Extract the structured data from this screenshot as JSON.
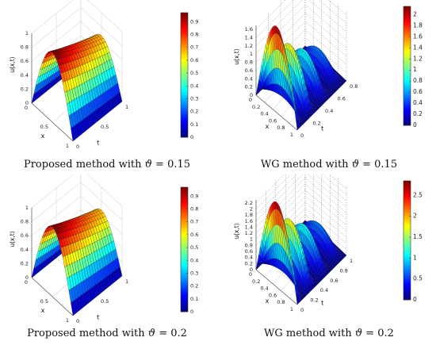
{
  "chart_data": [
    {
      "type": "surface3d",
      "caption": {
        "prefix": "Proposed method with ",
        "symbol": "ϑ",
        "rest": " = 0.15"
      },
      "zlabel": "u(x,t)",
      "xlabel": "x",
      "tlabel": "t",
      "zticks": [
        "0",
        "0.2",
        "0.4",
        "0.6",
        "0.8",
        "1"
      ],
      "xticks": [
        "0",
        "0.5",
        "1"
      ],
      "tticks": [
        "0",
        "0.5",
        "1"
      ],
      "zlim": [
        0,
        1
      ],
      "function": "sin(pi*x)*exp(-0.4*t)",
      "colorbar": {
        "ticks": [
          "0",
          "0.1",
          "0.2",
          "0.3",
          "0.4",
          "0.5",
          "0.6",
          "0.7",
          "0.8",
          "0.9"
        ],
        "range": [
          0,
          0.97
        ]
      }
    },
    {
      "type": "surface3d",
      "caption": {
        "prefix": "WG method with ",
        "symbol": "ϑ",
        "rest": " = 0.15"
      },
      "zlabel": "u(x,t)",
      "xlabel": "x",
      "tlabel": "t",
      "zticks": [
        "0",
        "0.2",
        "0.4",
        "0.6",
        "0.8",
        "1",
        "1.2",
        "1.4",
        "1.6"
      ],
      "xticks": [
        "0",
        "0.2",
        "0.4",
        "0.6",
        "0.8",
        "1"
      ],
      "tticks": [
        "0",
        "0.2",
        "0.4",
        "0.6",
        "0.8"
      ],
      "zlim": [
        0,
        1.7
      ],
      "function": "oscillating sin(pi*x) profile, peak about 2.1 near t=0, decaying in t",
      "colorbar": {
        "ticks": [
          "0",
          "0.2",
          "0.4",
          "0.6",
          "0.8",
          "1",
          "1.2",
          "1.4",
          "1.6",
          "1.8",
          "2"
        ],
        "range": [
          0,
          2.15
        ]
      }
    },
    {
      "type": "surface3d",
      "caption": {
        "prefix": "Proposed method with ",
        "symbol": "ϑ",
        "rest": " = 0.2"
      },
      "zlabel": "u(x,t)",
      "xlabel": "x",
      "tlabel": "t",
      "zticks": [
        "0",
        "0.2",
        "0.4",
        "0.6",
        "0.8",
        "1"
      ],
      "xticks": [
        "0",
        "0.5",
        "1"
      ],
      "tticks": [
        "0",
        "0.5",
        "1"
      ],
      "zlim": [
        0,
        1
      ],
      "function": "sin(pi*x)*exp(-0.4*t)",
      "colorbar": {
        "ticks": [
          "0",
          "0.1",
          "0.2",
          "0.3",
          "0.4",
          "0.5",
          "0.6",
          "0.7",
          "0.8",
          "0.9"
        ],
        "range": [
          0,
          0.97
        ]
      }
    },
    {
      "type": "surface3d",
      "caption": {
        "prefix": "WG method with ",
        "symbol": "ϑ",
        "rest": " = 0.2"
      },
      "zlabel": "u(x,t)",
      "xlabel": "x",
      "tlabel": "t",
      "zticks": [
        "0",
        "0.2",
        "0.4",
        "0.6",
        "0.8",
        "1",
        "1.2",
        "1.4",
        "1.6",
        "1.8",
        "2",
        "2.2"
      ],
      "xticks": [
        "0",
        "0.2",
        "0.4",
        "0.6",
        "0.8",
        "1"
      ],
      "tticks": [
        "0",
        "0.2",
        "0.4",
        "0.6",
        "0.8",
        "1"
      ],
      "zlim": [
        0,
        2.3
      ],
      "function": "oscillating sin(pi*x) profile, peak about 2.8 near t=0, decaying in t",
      "colorbar": {
        "ticks": [
          "0",
          "0.5",
          "1",
          "1.5",
          "2",
          "2.5"
        ],
        "range": [
          0,
          2.85
        ]
      }
    }
  ]
}
